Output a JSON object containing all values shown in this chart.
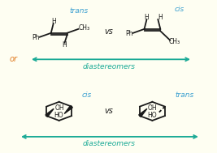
{
  "bg_color": "#fefef2",
  "line_color": "#1a1a1a",
  "teal_color": "#1aaa96",
  "orange_color": "#e07b20",
  "blue_color": "#3a9fd0",
  "top_left_label": "trans",
  "top_right_label": "cis",
  "bottom_left_label": "cis",
  "bottom_right_label": "trans",
  "vs_label": "vs",
  "diastereomers_label": "diastereomers",
  "or_label": "or"
}
